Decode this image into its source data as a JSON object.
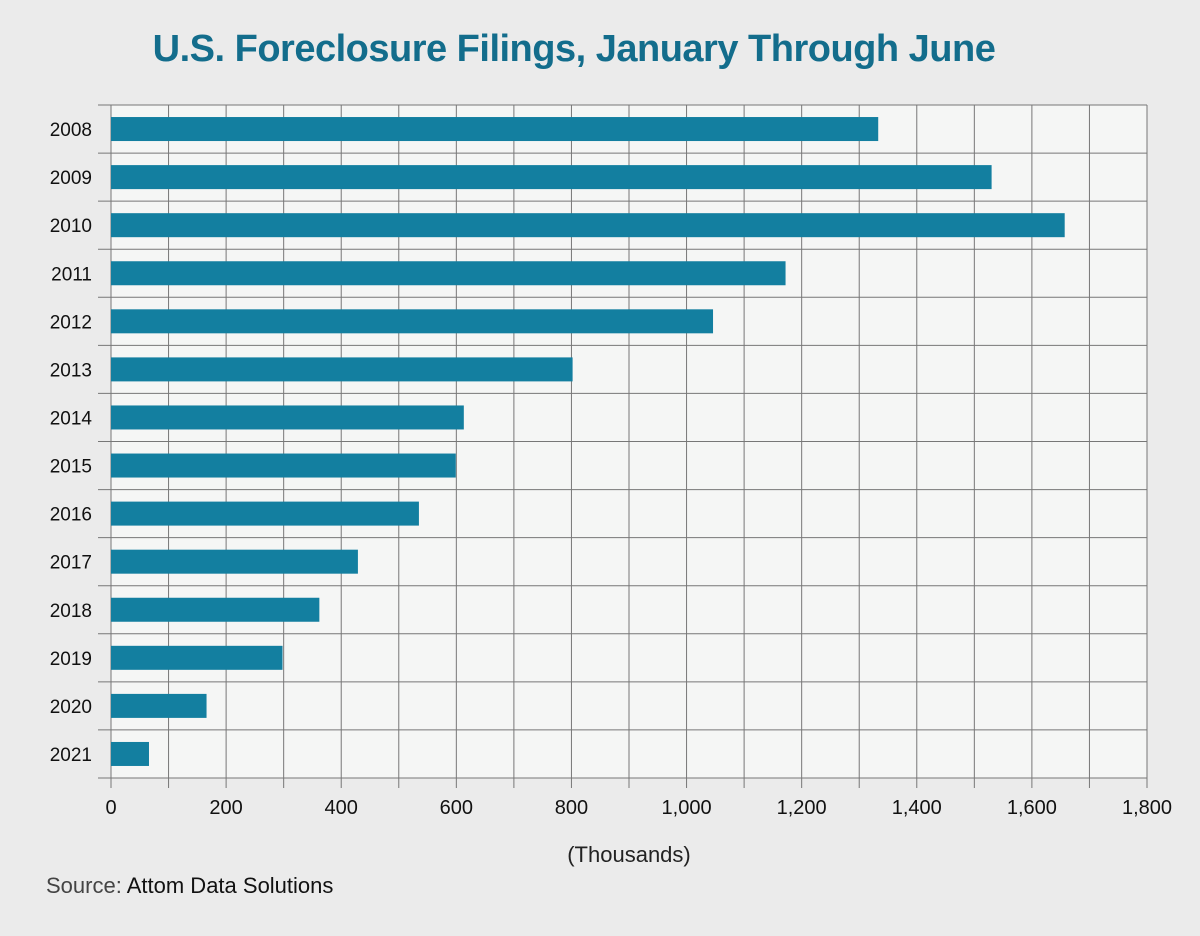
{
  "colors": {
    "title": "#136d8c",
    "bar": "#137fa0",
    "plot_bg": "#f5f6f5",
    "grid": "#777777",
    "page_bg": "#ebebeb"
  },
  "source": {
    "label": "Source:",
    "value": "Attom Data Solutions"
  },
  "chart_data": {
    "type": "bar",
    "orientation": "horizontal",
    "title": "U.S. Foreclosure Filings, January Through June",
    "xlabel": "(Thousands)",
    "ylabel": "",
    "categories": [
      "2008",
      "2009",
      "2010",
      "2011",
      "2012",
      "2013",
      "2014",
      "2015",
      "2016",
      "2017",
      "2018",
      "2019",
      "2020",
      "2021"
    ],
    "values": [
      1333,
      1530,
      1657,
      1172,
      1046,
      802,
      613,
      599,
      535,
      429,
      362,
      298,
      166,
      66
    ],
    "xlim": [
      0,
      1800
    ],
    "xticks": [
      0,
      200,
      400,
      600,
      800,
      1000,
      1200,
      1400,
      1600,
      1800
    ],
    "xtick_labels": [
      "0",
      "200",
      "400",
      "600",
      "800",
      "1,000",
      "1,200",
      "1,400",
      "1,600",
      "1,800"
    ],
    "grid": true,
    "legend": "none"
  }
}
